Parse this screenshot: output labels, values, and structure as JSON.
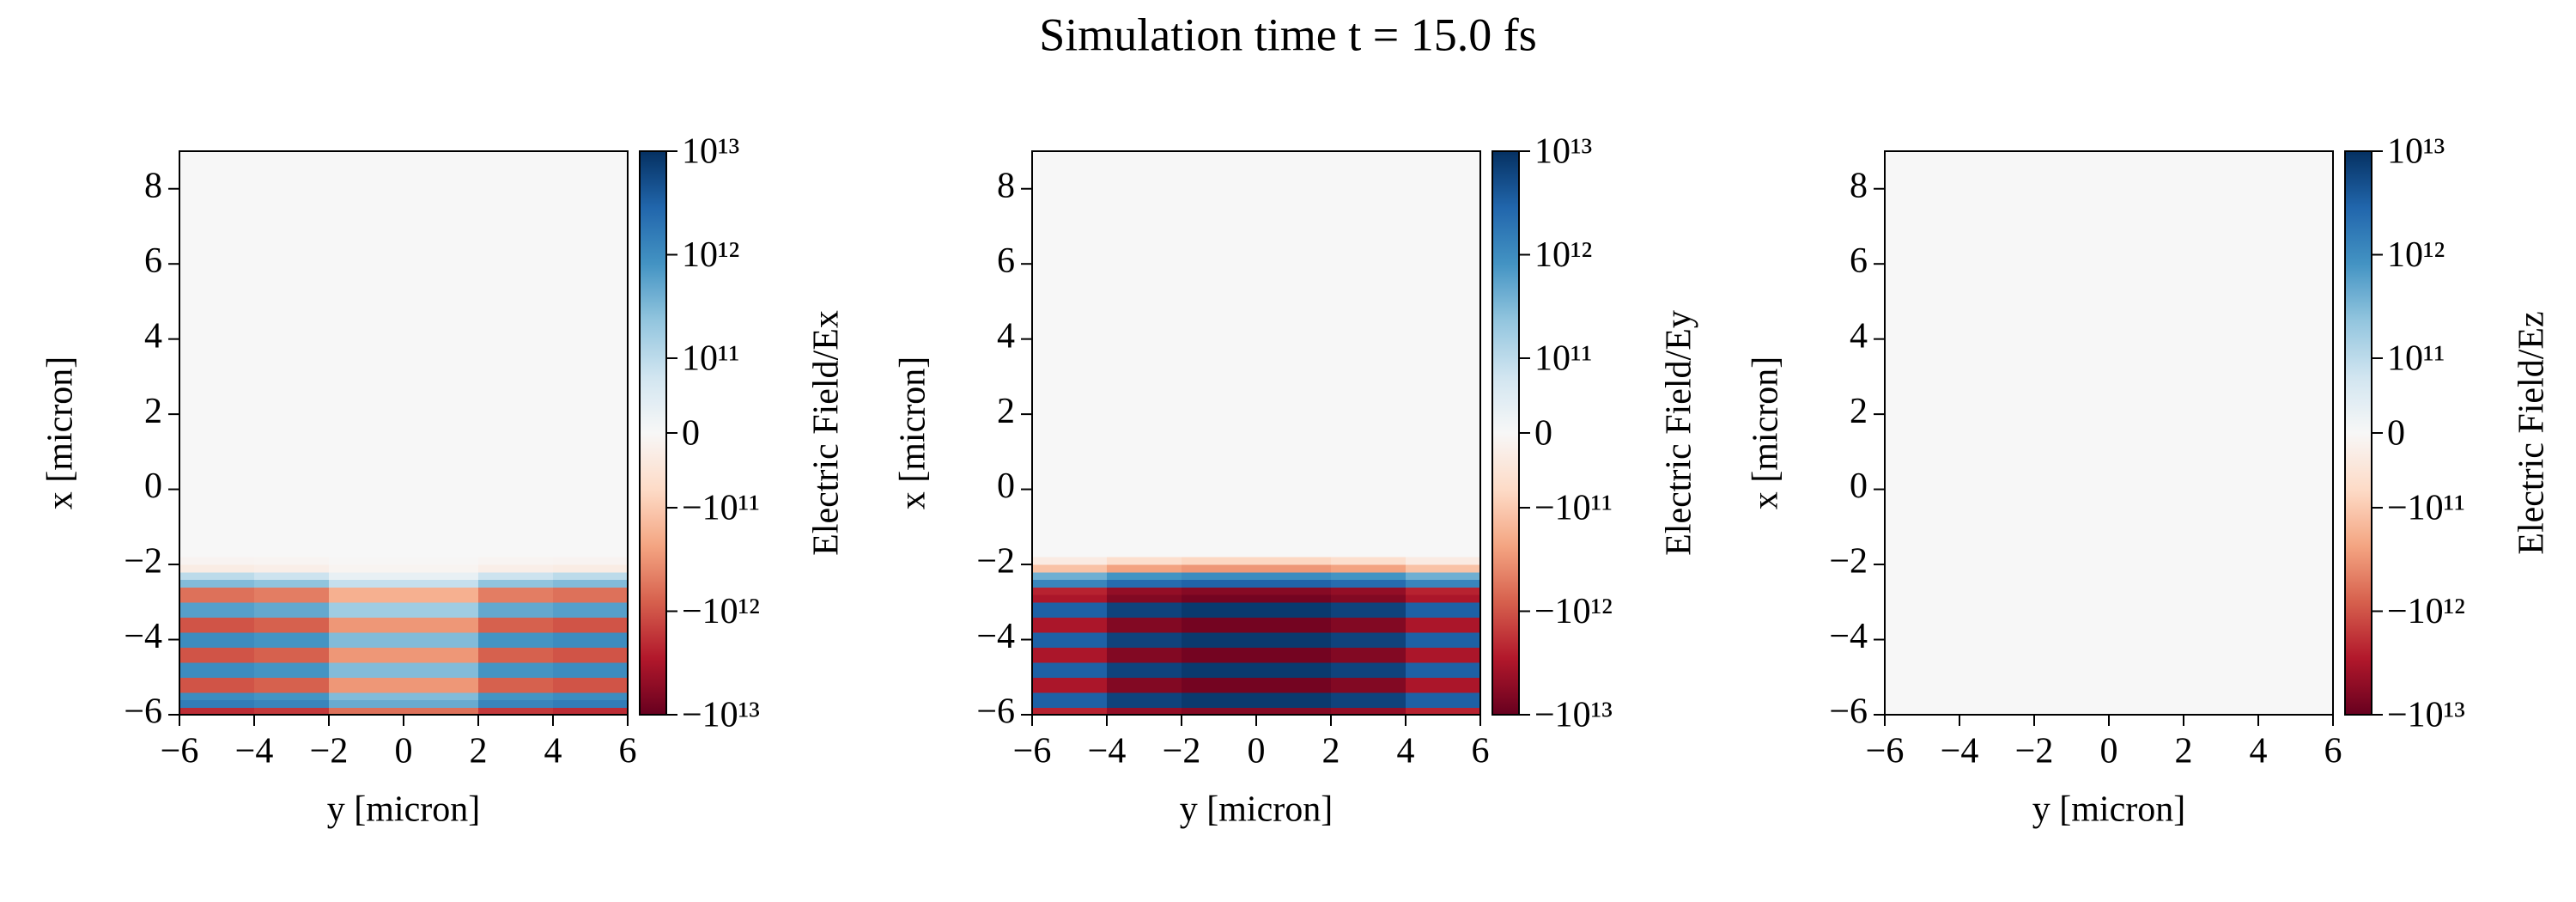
{
  "title": "Simulation time t = 15.0 fs",
  "chart_data": [
    {
      "type": "heatmap",
      "x_label": "y [micron]",
      "y_label": "x [micron]",
      "colorbar_label": "Electric Field/Ex",
      "colormap": "RdBu",
      "colorbar_scale": "symlog",
      "linthresh": 100000000000.0,
      "linscale": 0.65,
      "clim": [
        -10000000000000.0,
        10000000000000.0
      ],
      "cticks": [
        {
          "value": 10000000000000.0,
          "label": "10¹³"
        },
        {
          "value": 1000000000000.0,
          "label": "10¹²"
        },
        {
          "value": 100000000000.0,
          "label": "10¹¹"
        },
        0,
        {
          "value": -100000000000.0,
          "label": "−10¹¹"
        },
        {
          "value": -1000000000000.0,
          "label": "−10¹²"
        },
        {
          "value": -10000000000000.0,
          "label": "−10¹³"
        }
      ],
      "xlim": [
        -6,
        6
      ],
      "ylim": [
        -6,
        9
      ],
      "xticks": [
        {
          "value": -6,
          "label": "−6"
        },
        {
          "value": -4,
          "label": "−4"
        },
        {
          "value": -2,
          "label": "−2"
        },
        0,
        2,
        4,
        6
      ],
      "yticks": [
        {
          "value": -6,
          "label": "−6"
        },
        {
          "value": -4,
          "label": "−4"
        },
        {
          "value": -2,
          "label": "−2"
        },
        0,
        2,
        4,
        6,
        8
      ],
      "x": [
        -5,
        -3,
        -1,
        1,
        3,
        5
      ],
      "y": [
        -5.9,
        -5.7,
        -5.5,
        -5.3,
        -5.1,
        -4.9,
        -4.7,
        -4.5,
        -4.3,
        -4.1,
        -3.9,
        -3.7,
        -3.5,
        -3.3,
        -3.1,
        -2.9,
        -2.7,
        -2.5,
        -2.3,
        -2.1,
        -1.9
      ],
      "z": [
        [
          -2000000000000.0,
          -1600000000000.0,
          -600000000000.0,
          -600000000000.0,
          -1600000000000.0,
          -2000000000000.0
        ],
        [
          1500000000000.0,
          1200000000000.0,
          450000000000.0,
          450000000000.0,
          1200000000000.0,
          1500000000000.0
        ],
        [
          1000000000000.0,
          800000000000.0,
          300000000000.0,
          300000000000.0,
          800000000000.0,
          1000000000000.0
        ],
        [
          -1000000000000.0,
          -800000000000.0,
          -300000000000.0,
          -300000000000.0,
          -800000000000.0,
          -1000000000000.0
        ],
        [
          -1000000000000.0,
          -800000000000.0,
          -300000000000.0,
          -300000000000.0,
          -800000000000.0,
          -1000000000000.0
        ],
        [
          1000000000000.0,
          800000000000.0,
          300000000000.0,
          300000000000.0,
          800000000000.0,
          1000000000000.0
        ],
        [
          1000000000000.0,
          800000000000.0,
          300000000000.0,
          300000000000.0,
          800000000000.0,
          1000000000000.0
        ],
        [
          -1000000000000.0,
          -800000000000.0,
          -300000000000.0,
          -300000000000.0,
          -800000000000.0,
          -1000000000000.0
        ],
        [
          -1000000000000.0,
          -800000000000.0,
          -300000000000.0,
          -300000000000.0,
          -800000000000.0,
          -1000000000000.0
        ],
        [
          1000000000000.0,
          800000000000.0,
          300000000000.0,
          300000000000.0,
          800000000000.0,
          1000000000000.0
        ],
        [
          1000000000000.0,
          800000000000.0,
          300000000000.0,
          300000000000.0,
          800000000000.0,
          1000000000000.0
        ],
        [
          -1000000000000.0,
          -800000000000.0,
          -300000000000.0,
          -300000000000.0,
          -800000000000.0,
          -1000000000000.0
        ],
        [
          -1000000000000.0,
          -800000000000.0,
          -300000000000.0,
          -300000000000.0,
          -800000000000.0,
          -1000000000000.0
        ],
        [
          600000000000.0,
          480000000000.0,
          180000000000.0,
          180000000000.0,
          480000000000.0,
          600000000000.0
        ],
        [
          600000000000.0,
          480000000000.0,
          180000000000.0,
          180000000000.0,
          480000000000.0,
          600000000000.0
        ],
        [
          -600000000000.0,
          -480000000000.0,
          -180000000000.0,
          -180000000000.0,
          -480000000000.0,
          -600000000000.0
        ],
        [
          -600000000000.0,
          -480000000000.0,
          -180000000000.0,
          -180000000000.0,
          -480000000000.0,
          -600000000000.0
        ],
        [
          300000000000.0,
          240000000000.0,
          90000000000.0,
          90000000000.0,
          240000000000.0,
          300000000000.0
        ],
        [
          100000000000.0,
          80000000000.0,
          30000000000.0,
          30000000000.0,
          80000000000.0,
          100000000000.0
        ],
        [
          -30000000000.0,
          -24000000000.0,
          -9000000000.0,
          -9000000000.0,
          -24000000000.0,
          -30000000000.0
        ],
        [
          -10000000000.0,
          -8000000000.0,
          -3000000000.0,
          -3000000000.0,
          -8000000000.0,
          -10000000000.0
        ]
      ]
    },
    {
      "type": "heatmap",
      "x_label": "y [micron]",
      "y_label": "x [micron]",
      "colorbar_label": "Electric Field/Ey",
      "colormap": "RdBu",
      "colorbar_scale": "symlog",
      "linthresh": 100000000000.0,
      "linscale": 0.65,
      "clim": [
        -10000000000000.0,
        10000000000000.0
      ],
      "cticks": [
        {
          "value": 10000000000000.0,
          "label": "10¹³"
        },
        {
          "value": 1000000000000.0,
          "label": "10¹²"
        },
        {
          "value": 100000000000.0,
          "label": "10¹¹"
        },
        0,
        {
          "value": -100000000000.0,
          "label": "−10¹¹"
        },
        {
          "value": -1000000000000.0,
          "label": "−10¹²"
        },
        {
          "value": -10000000000000.0,
          "label": "−10¹³"
        }
      ],
      "xlim": [
        -6,
        6
      ],
      "ylim": [
        -6,
        9
      ],
      "xticks": [
        {
          "value": -6,
          "label": "−6"
        },
        {
          "value": -4,
          "label": "−4"
        },
        {
          "value": -2,
          "label": "−2"
        },
        0,
        2,
        4,
        6
      ],
      "yticks": [
        {
          "value": -6,
          "label": "−6"
        },
        {
          "value": -4,
          "label": "−4"
        },
        {
          "value": -2,
          "label": "−2"
        },
        0,
        2,
        4,
        6,
        8
      ],
      "x": [
        -5,
        -3,
        -1,
        1,
        3,
        5
      ],
      "y": [
        -5.9,
        -5.7,
        -5.5,
        -5.3,
        -5.1,
        -4.9,
        -4.7,
        -4.5,
        -4.3,
        -4.1,
        -3.9,
        -3.7,
        -3.5,
        -3.3,
        -3.1,
        -2.9,
        -2.7,
        -2.5,
        -2.3,
        -2.1,
        -1.9
      ],
      "z": [
        [
          -2400000000000.0,
          -4800000000000.0,
          -6000000000000.0,
          -6000000000000.0,
          -4800000000000.0,
          -2400000000000.0
        ],
        [
          3200000000000.0,
          6400000000000.0,
          8000000000000.0,
          8000000000000.0,
          6400000000000.0,
          3200000000000.0
        ],
        [
          3200000000000.0,
          6400000000000.0,
          8000000000000.0,
          8000000000000.0,
          6400000000000.0,
          3200000000000.0
        ],
        [
          -3200000000000.0,
          -6400000000000.0,
          -8000000000000.0,
          -8000000000000.0,
          -6400000000000.0,
          -3200000000000.0
        ],
        [
          -3200000000000.0,
          -6400000000000.0,
          -8000000000000.0,
          -8000000000000.0,
          -6400000000000.0,
          -3200000000000.0
        ],
        [
          3200000000000.0,
          6400000000000.0,
          8000000000000.0,
          8000000000000.0,
          6400000000000.0,
          3200000000000.0
        ],
        [
          3200000000000.0,
          6400000000000.0,
          8000000000000.0,
          8000000000000.0,
          6400000000000.0,
          3200000000000.0
        ],
        [
          -3200000000000.0,
          -6400000000000.0,
          -8000000000000.0,
          -8000000000000.0,
          -6400000000000.0,
          -3200000000000.0
        ],
        [
          -3200000000000.0,
          -6400000000000.0,
          -8000000000000.0,
          -8000000000000.0,
          -6400000000000.0,
          -3200000000000.0
        ],
        [
          3200000000000.0,
          6400000000000.0,
          8000000000000.0,
          8000000000000.0,
          6400000000000.0,
          3200000000000.0
        ],
        [
          3200000000000.0,
          6400000000000.0,
          8000000000000.0,
          8000000000000.0,
          6400000000000.0,
          3200000000000.0
        ],
        [
          -3200000000000.0,
          -6400000000000.0,
          -8000000000000.0,
          -8000000000000.0,
          -6400000000000.0,
          -3200000000000.0
        ],
        [
          -3200000000000.0,
          -6400000000000.0,
          -8000000000000.0,
          -8000000000000.0,
          -6400000000000.0,
          -3200000000000.0
        ],
        [
          3200000000000.0,
          6400000000000.0,
          8000000000000.0,
          8000000000000.0,
          6400000000000.0,
          3200000000000.0
        ],
        [
          3200000000000.0,
          6400000000000.0,
          8000000000000.0,
          8000000000000.0,
          6400000000000.0,
          3200000000000.0
        ],
        [
          -3200000000000.0,
          -6400000000000.0,
          -8000000000000.0,
          -8000000000000.0,
          -6400000000000.0,
          -3200000000000.0
        ],
        [
          -2400000000000.0,
          -4800000000000.0,
          -6000000000000.0,
          -6000000000000.0,
          -4800000000000.0,
          -2400000000000.0
        ],
        [
          1200000000000.0,
          2400000000000.0,
          3000000000000.0,
          3000000000000.0,
          2400000000000.0,
          1200000000000.0
        ],
        [
          400000000000.0,
          800000000000.0,
          1000000000000.0,
          1000000000000.0,
          800000000000.0,
          400000000000.0
        ],
        [
          -120000000000.0,
          -240000000000.0,
          -300000000000.0,
          -300000000000.0,
          -240000000000.0,
          -120000000000.0
        ],
        [
          -32000000000.0,
          -64000000000.0,
          -80000000000.0,
          -80000000000.0,
          -64000000000.0,
          -32000000000.0
        ]
      ]
    },
    {
      "type": "heatmap",
      "x_label": "y [micron]",
      "y_label": "x [micron]",
      "colorbar_label": "Electric Field/Ez",
      "colormap": "RdBu",
      "colorbar_scale": "symlog",
      "linthresh": 100000000000.0,
      "linscale": 0.65,
      "clim": [
        -10000000000000.0,
        10000000000000.0
      ],
      "cticks": [
        {
          "value": 10000000000000.0,
          "label": "10¹³"
        },
        {
          "value": 1000000000000.0,
          "label": "10¹²"
        },
        {
          "value": 100000000000.0,
          "label": "10¹¹"
        },
        0,
        {
          "value": -100000000000.0,
          "label": "−10¹¹"
        },
        {
          "value": -1000000000000.0,
          "label": "−10¹²"
        },
        {
          "value": -10000000000000.0,
          "label": "−10¹³"
        }
      ],
      "xlim": [
        -6,
        6
      ],
      "ylim": [
        -6,
        9
      ],
      "xticks": [
        {
          "value": -6,
          "label": "−6"
        },
        {
          "value": -4,
          "label": "−4"
        },
        {
          "value": -2,
          "label": "−2"
        },
        0,
        2,
        4,
        6
      ],
      "yticks": [
        {
          "value": -6,
          "label": "−6"
        },
        {
          "value": -4,
          "label": "−4"
        },
        {
          "value": -2,
          "label": "−2"
        },
        0,
        2,
        4,
        6,
        8
      ],
      "x": [
        -5,
        -3,
        -1,
        1,
        3,
        5
      ],
      "y": [
        -5.9,
        -5.7,
        -5.5,
        -5.3,
        -5.1,
        -4.9,
        -4.7,
        -4.5,
        -4.3,
        -4.1,
        -3.9,
        -3.7,
        -3.5,
        -3.3,
        -3.1,
        -2.9,
        -2.7,
        -2.5,
        -2.3,
        -2.1,
        -1.9
      ],
      "z": [
        [
          0,
          0,
          0,
          0,
          0,
          0
        ],
        [
          0,
          0,
          0,
          0,
          0,
          0
        ],
        [
          0,
          0,
          0,
          0,
          0,
          0
        ],
        [
          0,
          0,
          0,
          0,
          0,
          0
        ],
        [
          0,
          0,
          0,
          0,
          0,
          0
        ],
        [
          0,
          0,
          0,
          0,
          0,
          0
        ],
        [
          0,
          0,
          0,
          0,
          0,
          0
        ],
        [
          0,
          0,
          0,
          0,
          0,
          0
        ],
        [
          0,
          0,
          0,
          0,
          0,
          0
        ],
        [
          0,
          0,
          0,
          0,
          0,
          0
        ],
        [
          0,
          0,
          0,
          0,
          0,
          0
        ],
        [
          0,
          0,
          0,
          0,
          0,
          0
        ],
        [
          0,
          0,
          0,
          0,
          0,
          0
        ],
        [
          0,
          0,
          0,
          0,
          0,
          0
        ],
        [
          0,
          0,
          0,
          0,
          0,
          0
        ],
        [
          0,
          0,
          0,
          0,
          0,
          0
        ],
        [
          0,
          0,
          0,
          0,
          0,
          0
        ],
        [
          0,
          0,
          0,
          0,
          0,
          0
        ],
        [
          0,
          0,
          0,
          0,
          0,
          0
        ],
        [
          0,
          0,
          0,
          0,
          0,
          0
        ],
        [
          0,
          0,
          0,
          0,
          0,
          0
        ]
      ]
    }
  ]
}
